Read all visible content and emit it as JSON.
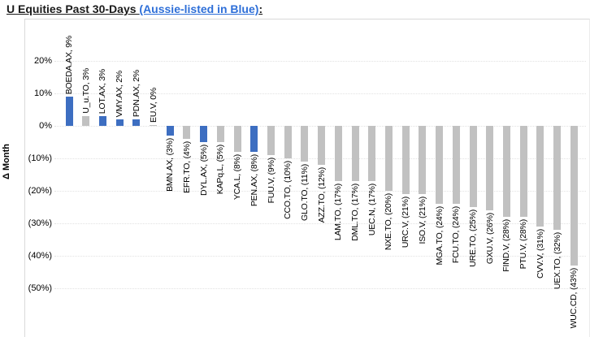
{
  "title": {
    "prefix": "U Equities Past 30-Days ",
    "highlight": "(Aussie-listed in Blue)",
    "suffix": ":"
  },
  "colors": {
    "aussie_blue": "#3d6ec1",
    "other_gray": "#c1c1c1",
    "title_highlight": "#2e6fd8",
    "gridline": "#e2e2e2"
  },
  "chart_data": {
    "type": "bar",
    "title": "U Equities Past 30-Days (Aussie-listed in Blue):",
    "ylabel": "Δ Month",
    "xlabel": "",
    "ylim": [
      -50,
      25
    ],
    "grid": "horizontal-dotted",
    "legend": "Aussie-listed bars in blue, all others gray; data labels shown at bar ends",
    "yticks": [
      {
        "label": "20%",
        "value": 20
      },
      {
        "label": "10%",
        "value": 10
      },
      {
        "label": "0%",
        "value": 0
      },
      {
        "label": "(10%)",
        "value": -10
      },
      {
        "label": "(20%)",
        "value": -20
      },
      {
        "label": "(30%)",
        "value": -30
      },
      {
        "label": "(40%)",
        "value": -40
      },
      {
        "label": "(50%)",
        "value": -50
      }
    ],
    "bars": [
      {
        "ticker": "BOEDA.AX",
        "value": 9,
        "label": "BOEDA.AX, 9%",
        "aussie": true
      },
      {
        "ticker": "U_u.TO",
        "value": 3,
        "label": "U_u.TO, 3%",
        "aussie": false
      },
      {
        "ticker": "LOT.AX",
        "value": 3,
        "label": "LOT.AX, 3%",
        "aussie": true
      },
      {
        "ticker": "VMY.AX",
        "value": 2,
        "label": "VMY.AX, 2%",
        "aussie": true
      },
      {
        "ticker": "PDN.AX",
        "value": 2,
        "label": "PDN.AX, 2%",
        "aussie": true
      },
      {
        "ticker": "EU.V",
        "value": 0,
        "label": "EU.V, 0%",
        "aussie": false
      },
      {
        "ticker": "BMN.AX",
        "value": -3,
        "label": "BMN.AX, (3%)",
        "aussie": true
      },
      {
        "ticker": "EFR.TO",
        "value": -4,
        "label": "EFR.TO, (4%)",
        "aussie": false
      },
      {
        "ticker": "DYL.AX",
        "value": -5,
        "label": "DYL.AX, (5%)",
        "aussie": true
      },
      {
        "ticker": "KAPq.L",
        "value": -5,
        "label": "KAPq.L, (5%)",
        "aussie": false
      },
      {
        "ticker": "YCA.L",
        "value": -8,
        "label": "YCA.L, (8%)",
        "aussie": false
      },
      {
        "ticker": "PEN.AX",
        "value": -8,
        "label": "PEN.AX, (8%)",
        "aussie": true
      },
      {
        "ticker": "FUU.V",
        "value": -9,
        "label": "FUU.V, (9%)",
        "aussie": false
      },
      {
        "ticker": "CCO.TO",
        "value": -10,
        "label": "CCO.TO, (10%)",
        "aussie": false
      },
      {
        "ticker": "GLO.TO",
        "value": -11,
        "label": "GLO.TO, (11%)",
        "aussie": false
      },
      {
        "ticker": "AZZ.TO",
        "value": -12,
        "label": "AZZ.TO, (12%)",
        "aussie": false
      },
      {
        "ticker": "LAM.TO",
        "value": -17,
        "label": "LAM.TO, (17%)",
        "aussie": false
      },
      {
        "ticker": "DML.TO",
        "value": -17,
        "label": "DML.TO, (17%)",
        "aussie": false
      },
      {
        "ticker": "UEC.N",
        "value": -17,
        "label": "UEC.N, (17%)",
        "aussie": false
      },
      {
        "ticker": "NXE.TO",
        "value": -20,
        "label": "NXE.TO, (20%)",
        "aussie": false
      },
      {
        "ticker": "URC.V",
        "value": -21,
        "label": "URC.V, (21%)",
        "aussie": false
      },
      {
        "ticker": "ISO.V",
        "value": -21,
        "label": "ISO.V, (21%)",
        "aussie": false
      },
      {
        "ticker": "MGA.TO",
        "value": -24,
        "label": "MGA.TO, (24%)",
        "aussie": false
      },
      {
        "ticker": "FCU.TO",
        "value": -24,
        "label": "FCU.TO, (24%)",
        "aussie": false
      },
      {
        "ticker": "URE.TO",
        "value": -25,
        "label": "URE.TO, (25%)",
        "aussie": false
      },
      {
        "ticker": "GXU.V",
        "value": -26,
        "label": "GXU.V, (26%)",
        "aussie": false
      },
      {
        "ticker": "FIND.V",
        "value": -28,
        "label": "FIND.V, (28%)",
        "aussie": false
      },
      {
        "ticker": "PTU.V",
        "value": -28,
        "label": "PTU.V, (28%)",
        "aussie": false
      },
      {
        "ticker": "CVV.V",
        "value": -31,
        "label": "CVV.V, (31%)",
        "aussie": false
      },
      {
        "ticker": "UEX.TO",
        "value": -32,
        "label": "UEX.TO, (32%)",
        "aussie": false
      },
      {
        "ticker": "WUC.CD",
        "value": -43,
        "label": "WUC.CD, (43%)",
        "aussie": false
      }
    ]
  }
}
